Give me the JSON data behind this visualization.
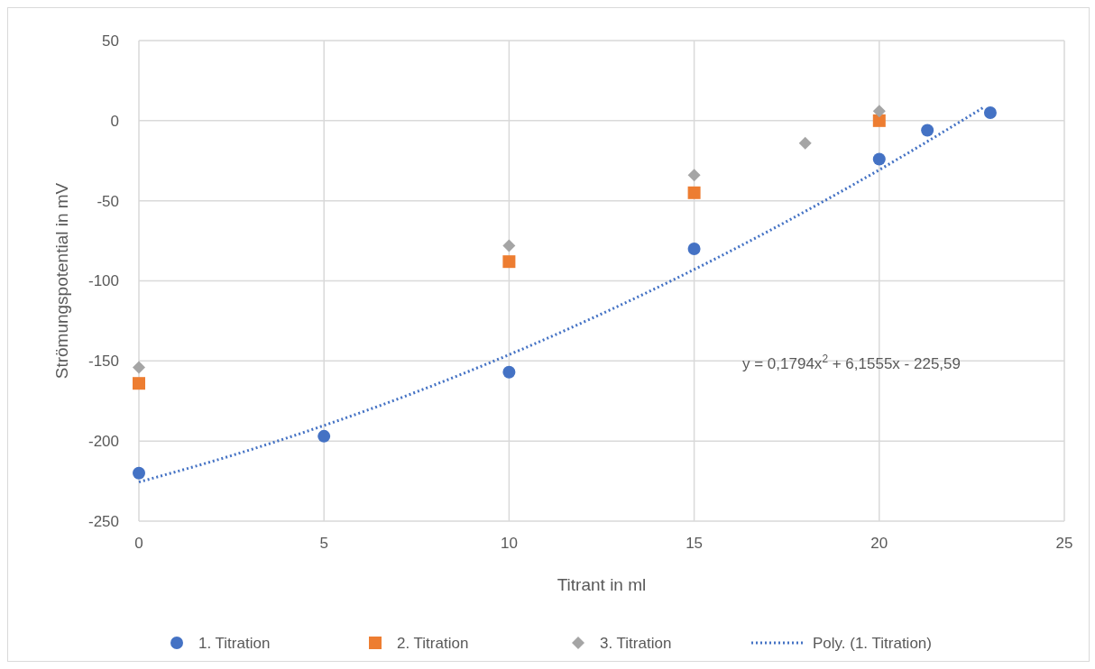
{
  "chart_data": {
    "type": "scatter",
    "xlabel": "Titrant in ml",
    "ylabel": "Strömungspotential in mV",
    "xlim": [
      0,
      25
    ],
    "xticks": [
      0,
      5,
      10,
      15,
      20,
      25
    ],
    "ylim": [
      -250,
      50
    ],
    "yticks": [
      -250,
      -200,
      -150,
      -100,
      -50,
      0,
      50
    ],
    "grid": true,
    "legend": "bottom",
    "annotations": [
      "y = 0,1794x$^{2}$ + 6,1555x - 225,59"
    ],
    "series": [
      {
        "name": "1. Titration",
        "color": "#4472c4",
        "marker": "circle",
        "x": [
          0,
          5,
          10,
          15,
          20,
          21.3,
          23
        ],
        "values": [
          -220,
          -197,
          -157,
          -80,
          -24,
          -6,
          5
        ]
      },
      {
        "name": "2. Titration",
        "color": "#ed7d31",
        "marker": "square",
        "x": [
          0,
          10,
          15,
          20
        ],
        "values": [
          -164,
          -88,
          -45,
          0
        ]
      },
      {
        "name": "3. Titration",
        "color": "#a5a5a5",
        "marker": "diamond",
        "x": [
          0,
          10,
          15,
          18,
          20
        ],
        "values": [
          -154,
          -78,
          -34,
          -14,
          6
        ]
      },
      {
        "name": "Poly. (1. Titration)",
        "type": "line",
        "color": "#4472c4",
        "line_style": "dotted",
        "marker": "none",
        "x": [
          0,
          2.5,
          5,
          7.5,
          10,
          12.5,
          15,
          17.5,
          20,
          22.8
        ],
        "values": [
          -225.6,
          -209.1,
          -190.3,
          -169.3,
          -146.1,
          -120.6,
          -92.9,
          -62.9,
          -30.7,
          8.0
        ]
      }
    ]
  }
}
